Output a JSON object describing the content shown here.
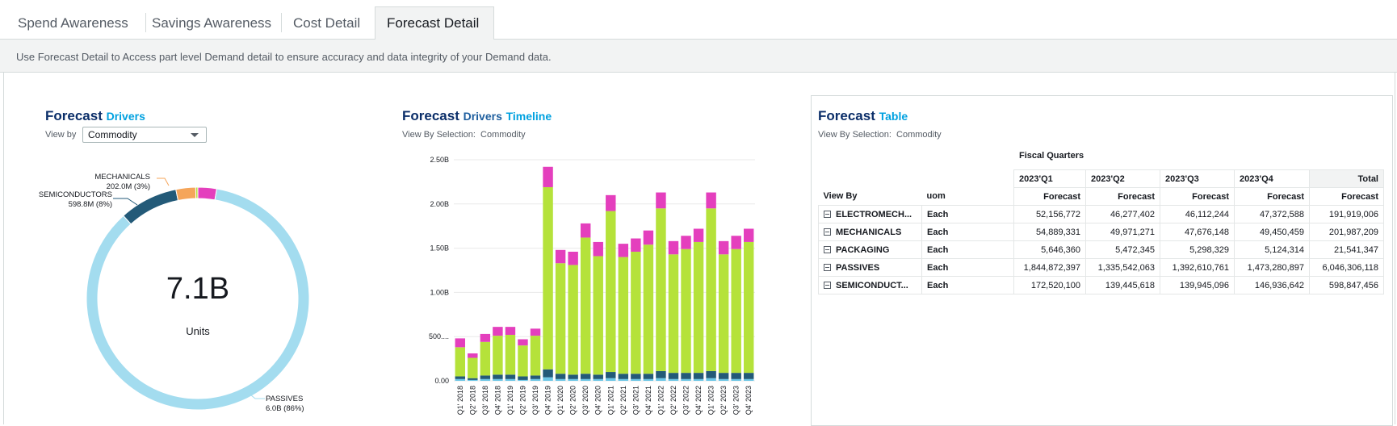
{
  "tabs": [
    {
      "label": "Spend Awareness"
    },
    {
      "label": "Savings Awareness"
    },
    {
      "label": "Cost Detail"
    },
    {
      "label": "Forecast Detail"
    }
  ],
  "description": "Use Forecast Detail to Access part level Demand detail to ensure accuracy and data integrity of your Demand data.",
  "drivers": {
    "title_1": "Forecast",
    "title_2": "Drivers",
    "view_by_label": "View by",
    "view_by_value": "Commodity",
    "center_value": "7.1B",
    "center_label": "Units",
    "labels": [
      {
        "name": "MECHANICALS",
        "value": "202.0M (3%)"
      },
      {
        "name": "SEMICONDUCTORS",
        "value": "598.8M (8%)"
      },
      {
        "name": "PASSIVES",
        "value": "6.0B (86%)"
      }
    ]
  },
  "timeline": {
    "title_1": "Forecast",
    "title_2": "Drivers",
    "title_3": "Timeline",
    "view_by_label": "View By Selection:",
    "view_by_value": "Commodity"
  },
  "table_panel": {
    "title_1": "Forecast",
    "title_2": "Table",
    "view_by_label": "View By Selection:",
    "view_by_value": "Commodity",
    "fiscal_quarters": "Fiscal Quarters",
    "quarters": [
      "2023'Q1",
      "2023'Q2",
      "2023'Q3",
      "2023'Q4",
      "Total"
    ],
    "view_by_header": "View By",
    "uom_header": "uom",
    "measure": "Forecast",
    "rows": [
      {
        "name": "ELECTROMECH...",
        "uom": "Each",
        "values": [
          "52,156,772",
          "46,277,402",
          "46,112,244",
          "47,372,588",
          "191,919,006"
        ]
      },
      {
        "name": "MECHANICALS",
        "uom": "Each",
        "values": [
          "54,889,331",
          "49,971,271",
          "47,676,148",
          "49,450,459",
          "201,987,209"
        ]
      },
      {
        "name": "PACKAGING",
        "uom": "Each",
        "values": [
          "5,646,360",
          "5,472,345",
          "5,298,329",
          "5,124,314",
          "21,541,347"
        ]
      },
      {
        "name": "PASSIVES",
        "uom": "Each",
        "values": [
          "1,844,872,397",
          "1,335,542,063",
          "1,392,610,761",
          "1,473,280,897",
          "6,046,306,118"
        ]
      },
      {
        "name": "SEMICONDUCT...",
        "uom": "Each",
        "values": [
          "172,520,100",
          "139,445,618",
          "139,945,096",
          "146,936,642",
          "598,847,456"
        ]
      }
    ]
  },
  "colors": {
    "passives": "#a3dcef",
    "semiconductors": "#235a78",
    "mechanicals": "#f5a55a",
    "packaging": "#b5e23a",
    "electromech": "#e43fbd",
    "light_blue": "#6cc6e6"
  },
  "chart_data": [
    {
      "type": "pie",
      "title": "",
      "center_text": "7.1B Units",
      "labels": [
        "PASSIVES",
        "SEMICONDUCTORS",
        "MECHANICALS",
        "PACKAGING",
        "ELECTROMECH..."
      ],
      "values": [
        6046306118,
        598847456,
        201987209,
        21541347,
        191919006
      ],
      "display_labels": [
        "6.0B (86%)",
        "598.8M (8%)",
        "202.0M (3%)",
        "",
        ""
      ]
    },
    {
      "type": "bar",
      "stacked": true,
      "title": "",
      "xlabel": "",
      "ylabel": "",
      "ylim": [
        0,
        2.5
      ],
      "y_unit": "B",
      "yticks": [
        "0.00",
        "500....",
        "1.00B",
        "1.50B",
        "2.00B",
        "2.50B"
      ],
      "categories": [
        "Q1' 2018",
        "Q2' 2018",
        "Q3' 2018",
        "Q4' 2018",
        "Q1' 2019",
        "Q2' 2019",
        "Q3' 2019",
        "Q4' 2019",
        "Q1' 2020",
        "Q2' 2020",
        "Q3' 2020",
        "Q4' 2020",
        "Q1' 2021",
        "Q2' 2021",
        "Q3' 2021",
        "Q4' 2021",
        "Q1' 2022",
        "Q2' 2022",
        "Q3' 2022",
        "Q4' 2022",
        "Q1' 2023",
        "Q2' 2023",
        "Q3' 2023",
        "Q4' 2023"
      ],
      "totals": [
        0.48,
        0.31,
        0.53,
        0.61,
        0.61,
        0.47,
        0.59,
        2.42,
        1.48,
        1.46,
        1.78,
        1.57,
        2.1,
        1.55,
        1.61,
        1.7,
        2.13,
        1.58,
        1.64,
        1.72,
        2.13,
        1.58,
        1.64,
        1.72
      ],
      "series": [
        {
          "color_key": "light_blue",
          "values": [
            0.02,
            0.01,
            0.02,
            0.02,
            0.02,
            0.01,
            0.02,
            0.04,
            0.02,
            0.02,
            0.02,
            0.02,
            0.03,
            0.02,
            0.02,
            0.02,
            0.03,
            0.02,
            0.02,
            0.02,
            0.03,
            0.02,
            0.02,
            0.02
          ]
        },
        {
          "color_key": "semiconductors",
          "values": [
            0.03,
            0.02,
            0.04,
            0.05,
            0.05,
            0.04,
            0.04,
            0.09,
            0.06,
            0.05,
            0.06,
            0.05,
            0.07,
            0.06,
            0.06,
            0.06,
            0.08,
            0.07,
            0.07,
            0.07,
            0.08,
            0.07,
            0.07,
            0.07
          ]
        },
        {
          "color_key": "packaging",
          "values": [
            0.33,
            0.23,
            0.38,
            0.44,
            0.45,
            0.35,
            0.45,
            2.06,
            1.25,
            1.24,
            1.54,
            1.34,
            1.82,
            1.32,
            1.38,
            1.46,
            1.84,
            1.34,
            1.4,
            1.48,
            1.84,
            1.34,
            1.4,
            1.48
          ]
        },
        {
          "color_key": "electromech",
          "values": [
            0.1,
            0.05,
            0.09,
            0.1,
            0.09,
            0.07,
            0.08,
            0.23,
            0.15,
            0.15,
            0.16,
            0.16,
            0.18,
            0.15,
            0.15,
            0.16,
            0.18,
            0.15,
            0.15,
            0.15,
            0.18,
            0.15,
            0.15,
            0.15
          ]
        }
      ]
    }
  ]
}
